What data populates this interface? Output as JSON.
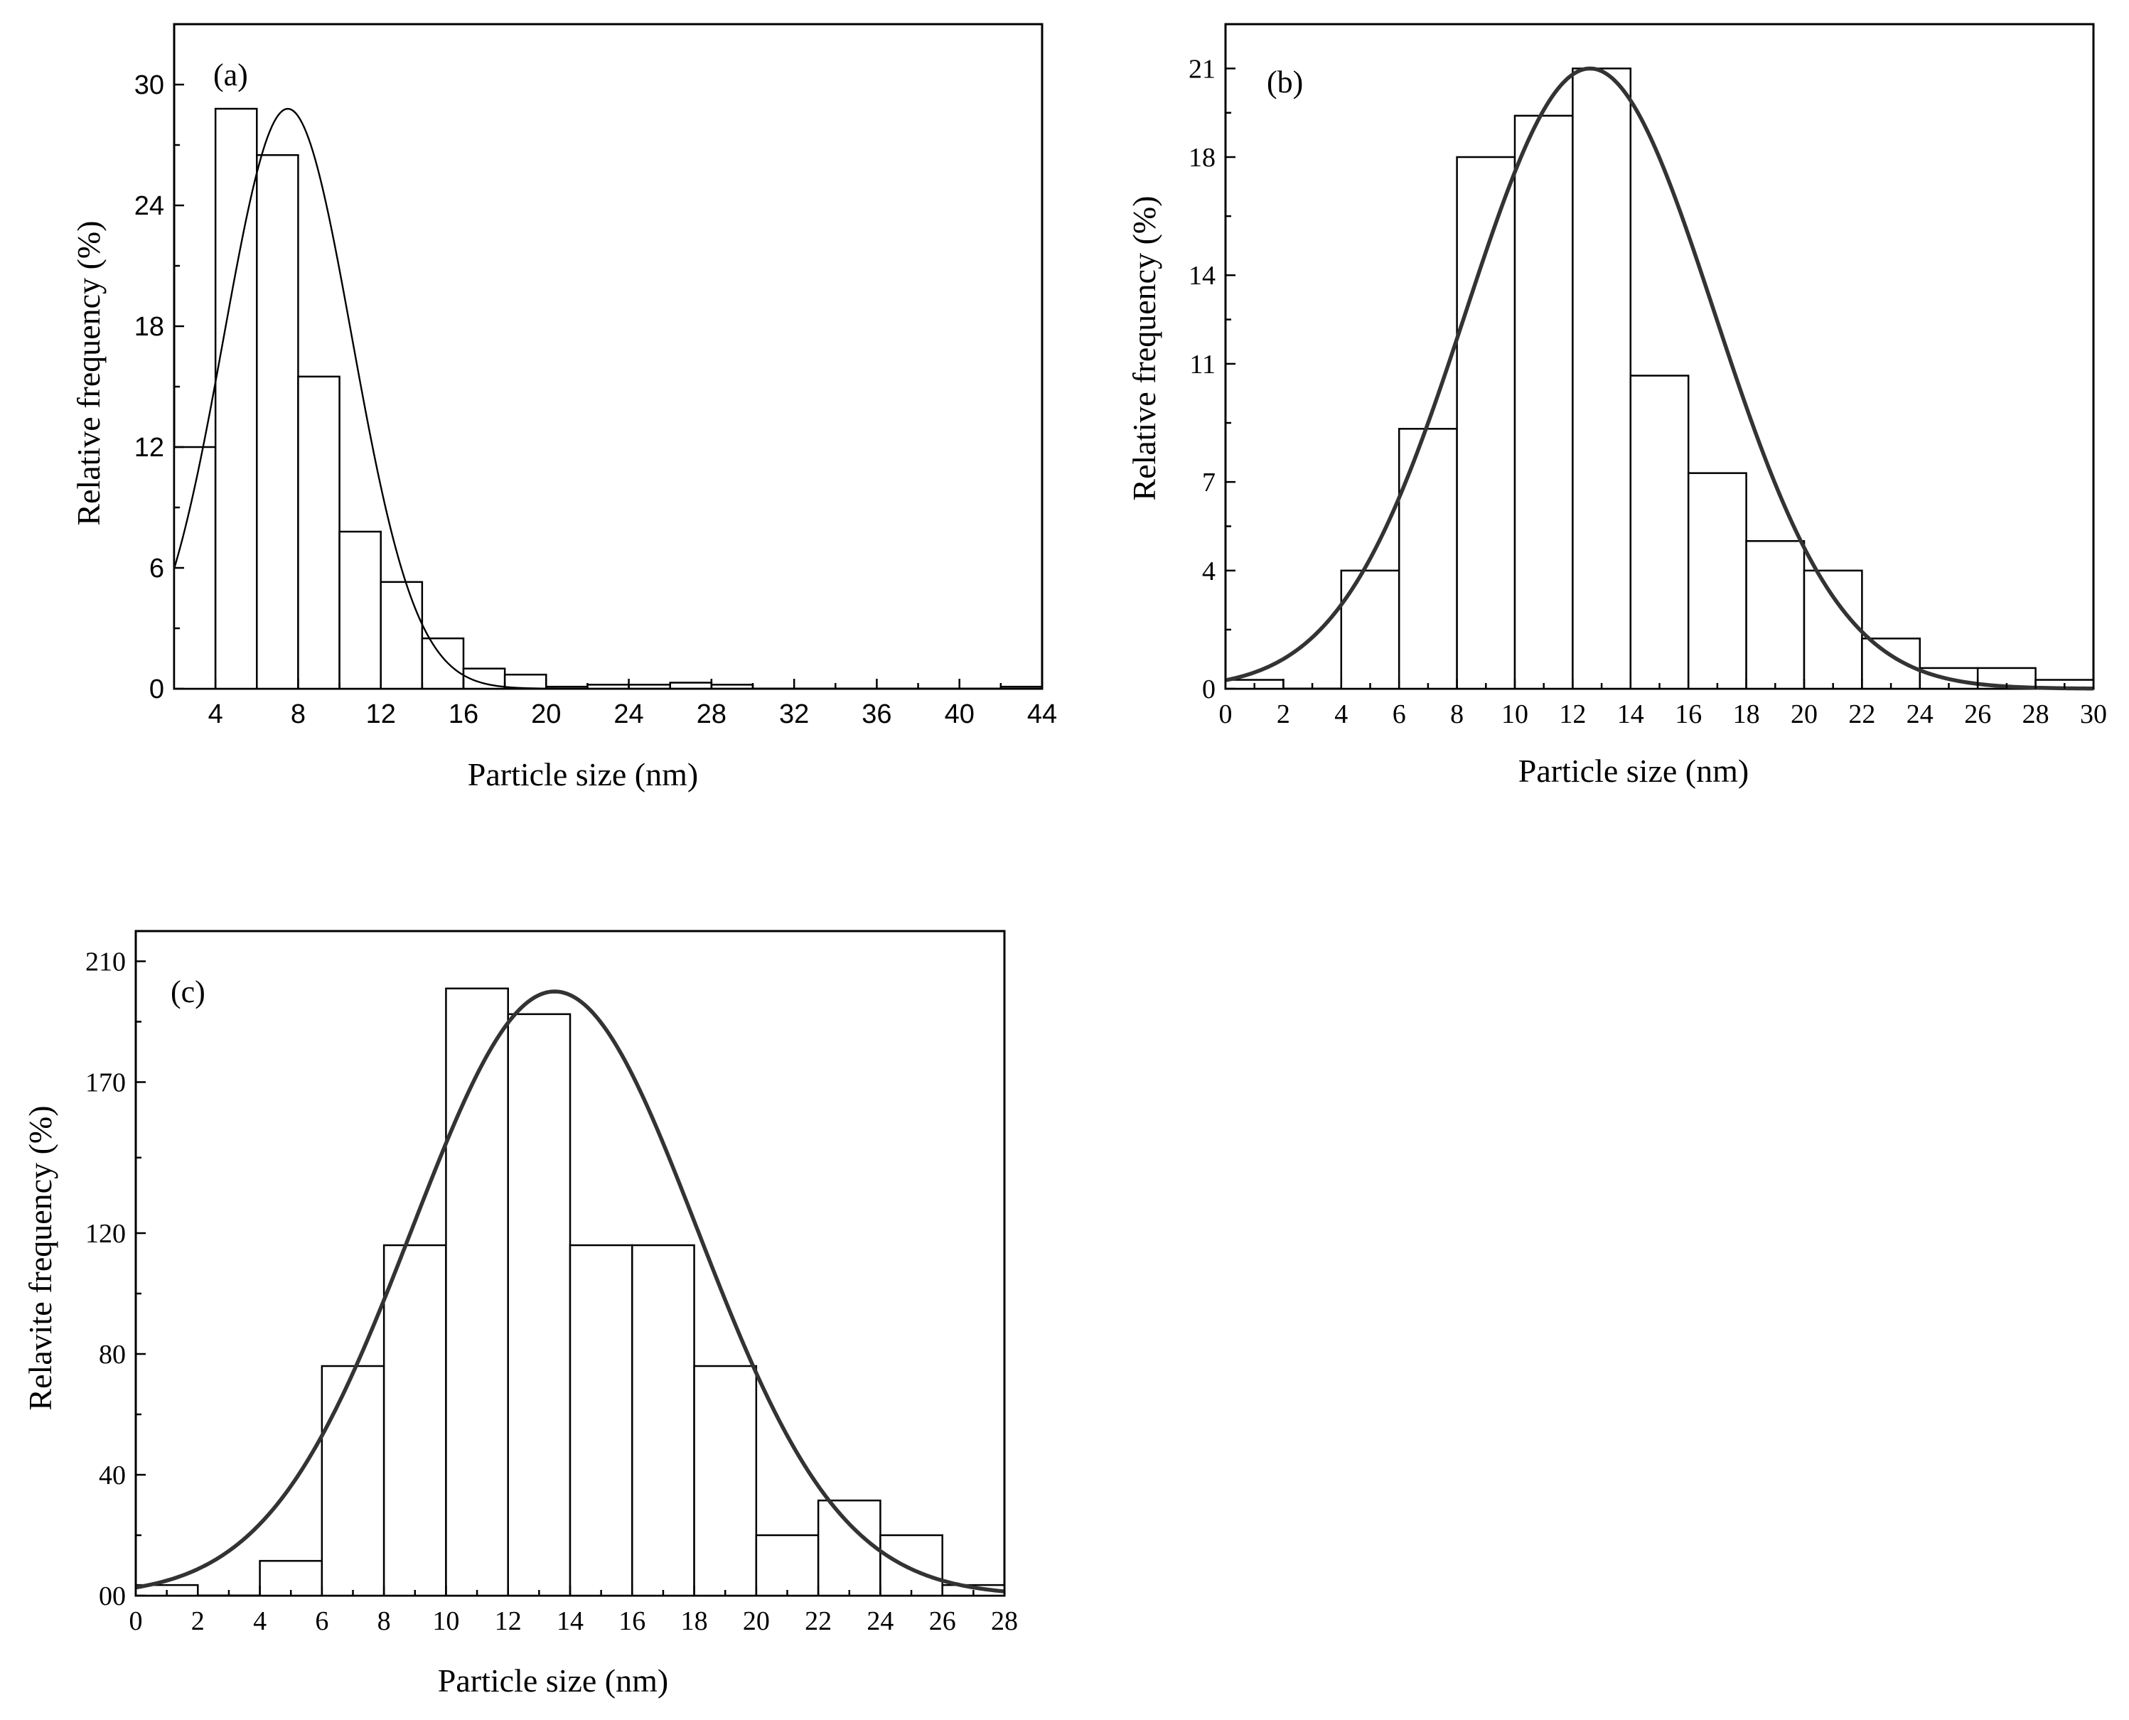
{
  "chart_data": [
    {
      "id": "a",
      "type": "bar",
      "panel_label": "(a)",
      "xlabel": "Particle size (nm)",
      "ylabel": "Relative frequency (%)",
      "xlim": [
        2,
        44
      ],
      "ylim": [
        0,
        33
      ],
      "xticks": [
        4,
        8,
        12,
        16,
        20,
        24,
        28,
        32,
        36,
        40,
        44
      ],
      "xtick_labels": [
        "4",
        "8",
        "12",
        "16",
        "20",
        "24",
        "28",
        "32",
        "36",
        "40",
        "44"
      ],
      "yticks": [
        0,
        6,
        12,
        18,
        24,
        30
      ],
      "ytick_labels": [
        "0",
        "6",
        "12",
        "18",
        "24",
        "30"
      ],
      "bin_width": 2,
      "bin_starts": [
        2,
        4,
        6,
        8,
        10,
        12,
        14,
        16,
        18,
        20,
        22,
        24,
        26,
        28,
        42
      ],
      "values": [
        12,
        28.8,
        26.5,
        15.5,
        7.8,
        5.3,
        2.5,
        1,
        0.7,
        0.1,
        0.2,
        0.2,
        0.3,
        0.2,
        0.1
      ],
      "fit": {
        "type": "gaussian",
        "peak": 28.8,
        "mean": 7.5,
        "sd": 3.1
      }
    },
    {
      "id": "b",
      "type": "bar",
      "panel_label": "(b)",
      "xlabel": "Particle size (nm)",
      "ylabel": "Relative frequency (%)",
      "xlim": [
        0,
        30
      ],
      "ylim": [
        0,
        22.5
      ],
      "xticks": [
        0,
        2,
        4,
        6,
        8,
        10,
        12,
        14,
        16,
        18,
        20,
        22,
        24,
        26,
        28,
        30
      ],
      "xtick_labels": [
        "0",
        "2",
        "4",
        "6",
        "8",
        "10",
        "12",
        "14",
        "16",
        "18",
        "20",
        "22",
        "24",
        "26",
        "28",
        "30"
      ],
      "yticks": [
        0,
        4,
        7,
        11,
        14,
        18,
        21
      ],
      "ytick_labels": [
        "0",
        "4",
        "7",
        "11",
        "14",
        "18",
        "21"
      ],
      "bin_width": 2,
      "bin_starts": [
        0,
        4,
        6,
        8,
        10,
        12,
        14,
        16,
        18,
        20,
        22,
        24,
        26,
        28
      ],
      "values": [
        0.3,
        4,
        8.8,
        18,
        19.4,
        21,
        10.6,
        7.3,
        5,
        4,
        1.7,
        0.7,
        0.7,
        0.3
      ],
      "fit": {
        "type": "gaussian",
        "peak": 21,
        "mean": 12.6,
        "sd": 4.3
      }
    },
    {
      "id": "c",
      "type": "bar",
      "panel_label": "(c)",
      "xlabel": "Particle size (nm)",
      "ylabel": "Relavite frequency (%)",
      "xlim": [
        0,
        28
      ],
      "ylim": [
        0,
        220
      ],
      "xticks": [
        0,
        2,
        4,
        6,
        8,
        10,
        12,
        14,
        16,
        18,
        20,
        22,
        24,
        26,
        28
      ],
      "xtick_labels": [
        "0",
        "2",
        "4",
        "6",
        "8",
        "10",
        "12",
        "14",
        "16",
        "18",
        "20",
        "22",
        "24",
        "26",
        "28"
      ],
      "yticks": [
        0,
        40,
        80,
        120,
        170,
        210
      ],
      "ytick_labels": [
        "00",
        "40",
        "80",
        "120",
        "170",
        "210"
      ],
      "bin_width": 2,
      "bin_starts": [
        0,
        4,
        6,
        8,
        10,
        12,
        14,
        16,
        18,
        20,
        22,
        24,
        26
      ],
      "values": [
        3.5,
        11.5,
        76,
        116,
        201,
        192.5,
        116,
        116,
        76,
        20,
        31.5,
        20,
        3.5
      ],
      "fit": {
        "type": "gaussian",
        "peak": 200,
        "mean": 13.5,
        "sd": 4.6
      }
    }
  ]
}
